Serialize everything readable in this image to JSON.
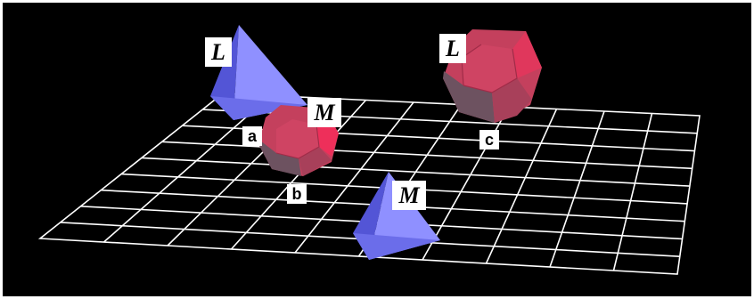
{
  "colors": {
    "background": "#000000",
    "frame": "#ffffff",
    "grid": "#ffffff",
    "tetrahedron_light": "#8a8cff",
    "tetrahedron_dark": "#4a4cc8",
    "dodecahedron_face": "#c5405e",
    "dodecahedron_highlight": "#f0305a",
    "dodecahedron_shadow": "#6b4f5c"
  },
  "shapes": [
    {
      "kind": "tetrahedron",
      "color": "blue"
    },
    {
      "kind": "dodecahedron",
      "color": "red"
    },
    {
      "kind": "dodecahedron",
      "color": "red"
    },
    {
      "kind": "tetrahedron",
      "color": "blue"
    }
  ],
  "labels": {
    "L_left": "L",
    "L_right": "L",
    "M_top": "M",
    "M_bottom": "M",
    "a": "a",
    "b": "b",
    "c": "c"
  }
}
